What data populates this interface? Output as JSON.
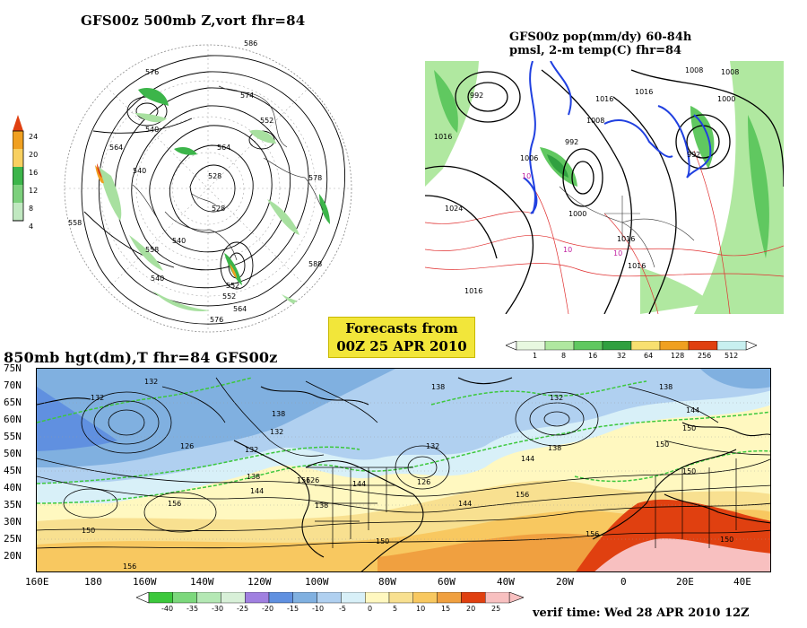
{
  "panel_500mb": {
    "title": "GFS00z   500mb  Z,vort     fhr=84",
    "colorbar_levels": [
      "24",
      "20",
      "16",
      "12",
      "8",
      "4"
    ],
    "contour_labels": [
      "586",
      "576",
      "574",
      "564",
      "552",
      "540",
      "564",
      "528",
      "540",
      "578",
      "558",
      "540",
      "552",
      "558",
      "576",
      "588",
      "528",
      "540",
      "552",
      "564"
    ],
    "colors": {
      "vort": "#3cb54a",
      "vort_light": "#a8e0a0",
      "vort_peak": "#f0a020"
    }
  },
  "panel_pop": {
    "title_line1": "GFS00z pop(mm/dy) 60-84h",
    "title_line2": "pmsl, 2-m temp(C)  fhr=84",
    "contour_labels": [
      "992",
      "1016",
      "1016",
      "1008",
      "1000",
      "992",
      "1008",
      "1024",
      "1000",
      "1016",
      "1016",
      "1016",
      "1008",
      "1016",
      "992",
      "1006"
    ],
    "temp_labels": [
      "10",
      "10",
      "10"
    ],
    "colorbar_levels": [
      "1",
      "8",
      "16",
      "32",
      "64",
      "128",
      "256",
      "512"
    ],
    "colorbar_colors": [
      "#e8f8e0",
      "#b0e8a0",
      "#60c860",
      "#30a040",
      "#f8e070",
      "#f0a020",
      "#e04010",
      "#c8f0f0"
    ]
  },
  "forecast_badge": {
    "line1": "Forecasts from",
    "line2": "00Z 25 APR 2010"
  },
  "panel_850mb": {
    "title": "850mb hgt(dm),T   fhr=84 GFS00z",
    "lat_labels": [
      "75N",
      "70N",
      "65N",
      "60N",
      "55N",
      "50N",
      "45N",
      "40N",
      "35N",
      "30N",
      "25N",
      "20N"
    ],
    "lon_labels": [
      "160E",
      "180",
      "160W",
      "140W",
      "120W",
      "100W",
      "80W",
      "60W",
      "40W",
      "20W",
      "0",
      "20E",
      "40E"
    ],
    "contour_labels": [
      "132",
      "132",
      "138",
      "138",
      "126",
      "132",
      "132",
      "144",
      "144",
      "138",
      "150",
      "132",
      "132",
      "126",
      "138",
      "156",
      "156",
      "138",
      "144",
      "150",
      "156",
      "150",
      "144",
      "150",
      "150",
      "156",
      "156",
      "126",
      "138",
      "144",
      "150"
    ],
    "colorbar_levels": [
      "-40",
      "-35",
      "-30",
      "-25",
      "-20",
      "-15",
      "-10",
      "-5",
      "0",
      "5",
      "10",
      "15",
      "20",
      "25"
    ],
    "colorbar_colors": [
      "#3cc83c",
      "#7cd87c",
      "#b4e8b4",
      "#d8f0d8",
      "#a080e0",
      "#6090e0",
      "#80b0e0",
      "#b0d0f0",
      "#d8f0f8",
      "#fff8c0",
      "#f8e090",
      "#f8c860",
      "#f0a040",
      "#e04010",
      "#f8c0c0"
    ]
  },
  "verif_time": "verif time: Wed 28 APR 2010 12Z"
}
